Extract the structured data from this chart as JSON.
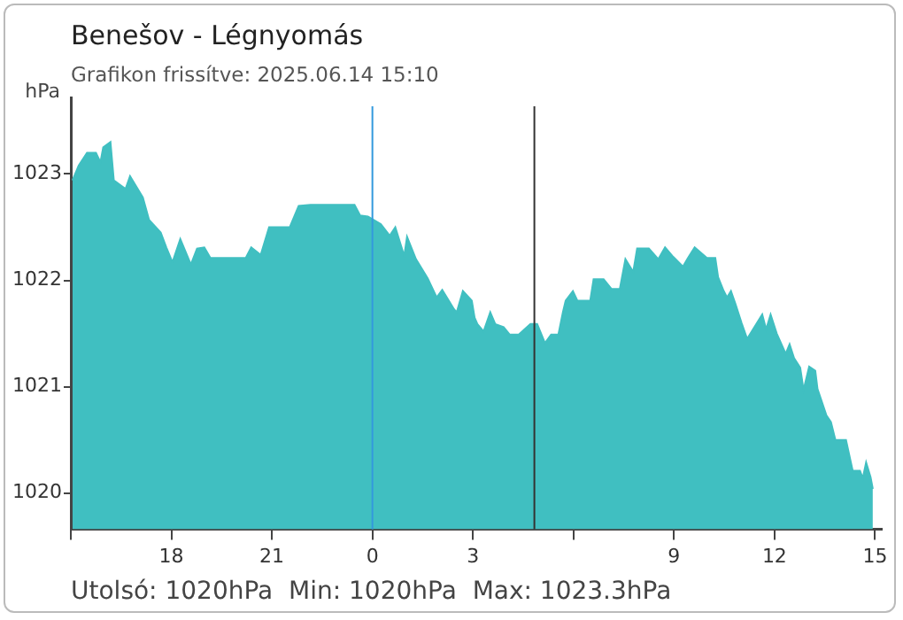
{
  "chart_data": {
    "type": "area",
    "title": "Benešov - Légnyomás",
    "subtitle": "Grafikon frissítve: 2025.06.14 15:10",
    "ylabel": "hPa",
    "annotations": [
      "Utolsó: 1020hPa  Min: 1020hPa  Max: 1023.3hPa"
    ],
    "xlim": [
      "2025-06-13T15:00",
      "2025-06-14T15:12"
    ],
    "xticks": [
      {
        "value": "2025-06-13T15:00",
        "label": null
      },
      {
        "value": "2025-06-13T18:00",
        "label": "18"
      },
      {
        "value": "2025-06-13T21:00",
        "label": "21"
      },
      {
        "value": "2025-06-14T00:00",
        "label": "0"
      },
      {
        "value": "2025-06-14T03:00",
        "label": "3"
      },
      {
        "value": "2025-06-14T06:00",
        "label": null
      },
      {
        "value": "2025-06-14T09:00",
        "label": "9"
      },
      {
        "value": "2025-06-14T12:00",
        "label": "12"
      },
      {
        "value": "2025-06-14T15:00",
        "label": "15"
      }
    ],
    "ylim": [
      1019.66,
      1023.72
    ],
    "yticks": [
      1020,
      1021,
      1022,
      1023
    ],
    "ref_lines": [
      {
        "axis": "x",
        "value": "2025-06-14T00:00",
        "color": "#3399dd"
      },
      {
        "axis": "x",
        "value": "2025-06-14T04:50",
        "color": "#333333"
      }
    ],
    "series": [
      {
        "color": "#40bfc1",
        "x": [
          "2025-06-13T15:03",
          "2025-06-13T15:14",
          "2025-06-13T15:29",
          "2025-06-13T15:45",
          "2025-06-13T15:53",
          "2025-06-13T15:58",
          "2025-06-13T16:11",
          "2025-06-13T16:17",
          "2025-06-13T16:38",
          "2025-06-13T16:46",
          "2025-06-13T17:09",
          "2025-06-13T17:20",
          "2025-06-13T17:41",
          "2025-06-13T17:51",
          "2025-06-13T18:02",
          "2025-06-13T18:16",
          "2025-06-13T18:35",
          "2025-06-13T18:46",
          "2025-06-13T18:59",
          "2025-06-13T19:10",
          "2025-06-13T20:13",
          "2025-06-13T20:23",
          "2025-06-13T20:40",
          "2025-06-13T20:55",
          "2025-06-13T21:32",
          "2025-06-13T21:48",
          "2025-06-13T22:09",
          "2025-06-13T23:17",
          "2025-06-13T23:28",
          "2025-06-13T23:38",
          "2025-06-13T23:52",
          "2025-06-14T00:15",
          "2025-06-14T00:31",
          "2025-06-14T00:41",
          "2025-06-14T00:57",
          "2025-06-14T01:02",
          "2025-06-14T01:18",
          "2025-06-14T01:39",
          "2025-06-14T01:55",
          "2025-06-14T02:05",
          "2025-06-14T02:26",
          "2025-06-14T02:31",
          "2025-06-14T02:42",
          "2025-06-14T02:58",
          "2025-06-14T03:03",
          "2025-06-14T03:08",
          "2025-06-14T03:19",
          "2025-06-14T03:31",
          "2025-06-14T03:40",
          "2025-06-14T03:55",
          "2025-06-14T04:06",
          "2025-06-14T04:22",
          "2025-06-14T04:43",
          "2025-06-14T04:55",
          "2025-06-14T05:09",
          "2025-06-14T05:20",
          "2025-06-14T05:33",
          "2025-06-14T05:41",
          "2025-06-14T05:46",
          "2025-06-14T05:59",
          "2025-06-14T06:07",
          "2025-06-14T06:30",
          "2025-06-14T06:36",
          "2025-06-14T06:54",
          "2025-06-14T07:08",
          "2025-06-14T07:23",
          "2025-06-14T07:33",
          "2025-06-14T07:47",
          "2025-06-14T07:54",
          "2025-06-14T08:15",
          "2025-06-14T08:32",
          "2025-06-14T08:44",
          "2025-06-14T08:57",
          "2025-06-14T09:16",
          "2025-06-14T09:25",
          "2025-06-14T09:37",
          "2025-06-14T09:59",
          "2025-06-14T10:14",
          "2025-06-14T10:19",
          "2025-06-14T10:29",
          "2025-06-14T10:35",
          "2025-06-14T10:42",
          "2025-06-14T10:50",
          "2025-06-14T11:01",
          "2025-06-14T11:11",
          "2025-06-14T11:38",
          "2025-06-14T11:45",
          "2025-06-14T11:53",
          "2025-06-14T12:04",
          "2025-06-14T12:20",
          "2025-06-14T12:27",
          "2025-06-14T12:35",
          "2025-06-14T12:46",
          "2025-06-14T12:52",
          "2025-06-14T13:02",
          "2025-06-14T13:13",
          "2025-06-14T13:17",
          "2025-06-14T13:33",
          "2025-06-14T13:41",
          "2025-06-14T13:49",
          "2025-06-14T14:08",
          "2025-06-14T14:20",
          "2025-06-14T14:33",
          "2025-06-14T14:38",
          "2025-06-14T14:44",
          "2025-06-14T14:52",
          "2025-06-14T14:56"
        ],
        "values": [
          1022.94,
          1023.08,
          1023.2,
          1023.2,
          1023.11,
          1023.25,
          1023.3,
          1022.94,
          1022.86,
          1022.98,
          1022.78,
          1022.57,
          1022.45,
          1022.31,
          1022.17,
          1022.39,
          1022.15,
          1022.3,
          1022.31,
          1022.21,
          1022.21,
          1022.31,
          1022.24,
          1022.5,
          1022.5,
          1022.7,
          1022.71,
          1022.71,
          1022.71,
          1022.61,
          1022.6,
          1022.53,
          1022.42,
          1022.5,
          1022.23,
          1022.41,
          1022.2,
          1022.02,
          1021.84,
          1021.91,
          1021.73,
          1021.7,
          1021.9,
          1021.81,
          1021.65,
          1021.59,
          1021.52,
          1021.7,
          1021.59,
          1021.56,
          1021.49,
          1021.49,
          1021.59,
          1021.59,
          1021.41,
          1021.49,
          1021.49,
          1021.7,
          1021.81,
          1021.9,
          1021.81,
          1021.81,
          1022.01,
          1022.01,
          1021.92,
          1021.92,
          1022.2,
          1022.08,
          1022.3,
          1022.3,
          1022.2,
          1022.31,
          1022.23,
          1022.13,
          1022.21,
          1022.31,
          1022.21,
          1022.21,
          1022.03,
          1021.9,
          1021.84,
          1021.9,
          1021.78,
          1021.6,
          1021.45,
          1021.68,
          1021.54,
          1021.68,
          1021.5,
          1021.31,
          1021.4,
          1021.27,
          1021.18,
          1020.97,
          1021.19,
          1021.15,
          1020.98,
          1020.73,
          1020.67,
          1020.5,
          1020.5,
          1020.21,
          1020.21,
          1020.14,
          1020.29,
          1020.15,
          1020.04
        ]
      }
    ]
  }
}
